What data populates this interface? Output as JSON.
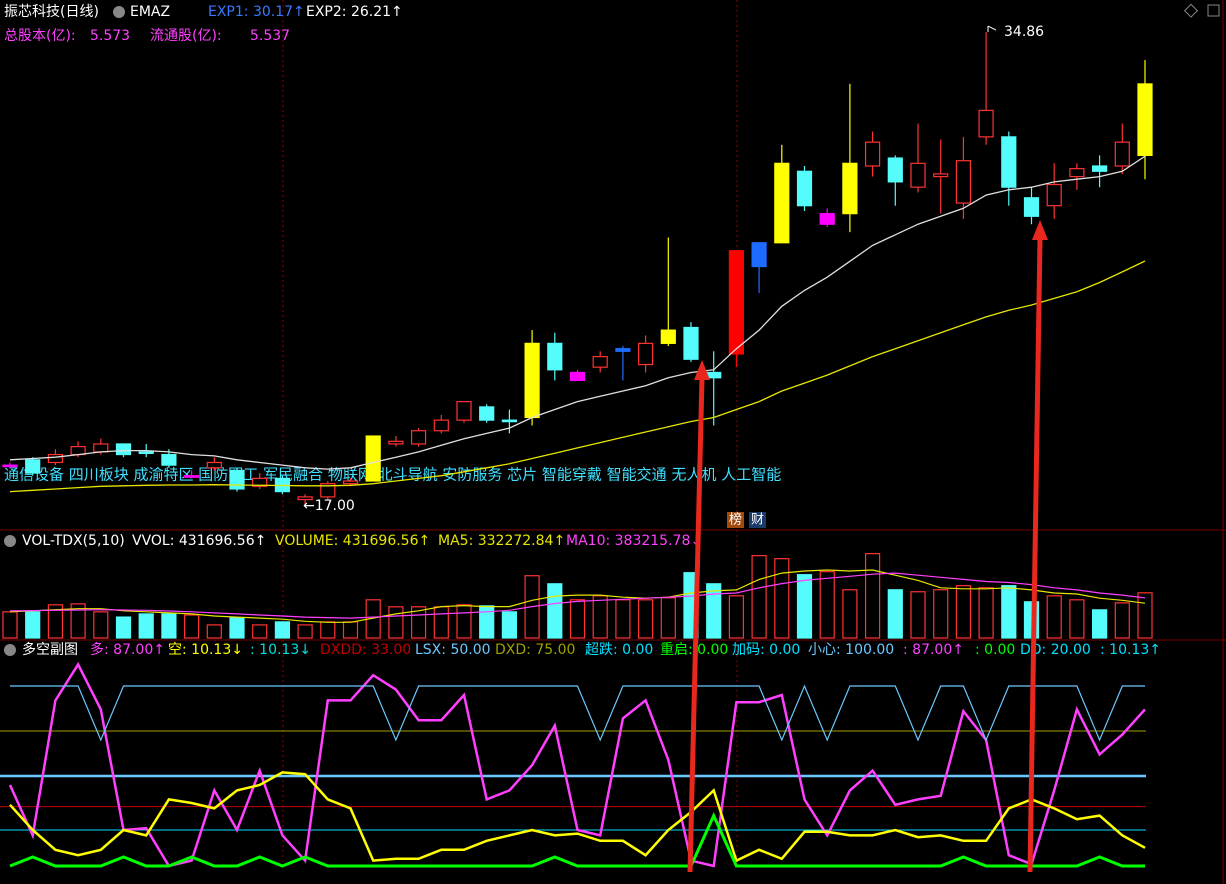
{
  "chart_data": [
    {
      "type": "candlestick",
      "title": "振芯科技(日线)",
      "indicator": "EMAZ",
      "info": [
        {
          "label": "总股本(亿):",
          "value": 5.573
        },
        {
          "label": "流通股(亿):",
          "value": 5.537
        }
      ],
      "open": [
        18.5,
        18.7,
        18.6,
        18.9,
        19.0,
        19.3,
        19.0,
        18.9,
        18.1,
        18.4,
        18.3,
        17.7,
        18.0,
        17.3,
        17.3,
        17.8,
        17.9,
        19.3,
        19.3,
        19.8,
        20.2,
        20.7,
        20.2,
        20.3,
        23.1,
        22.0,
        22.2,
        22.8,
        22.3,
        23.1,
        23.7,
        22.0,
        22.7,
        26.0,
        26.9,
        29.6,
        28.0,
        28.0,
        29.8,
        30.1,
        29.0,
        29.4,
        28.4,
        30.9,
        30.9,
        28.6,
        28.3,
        29.4,
        29.8,
        29.8,
        30.2
      ],
      "close": [
        18.5,
        18.2,
        18.9,
        19.2,
        19.3,
        18.9,
        19.0,
        18.5,
        18.1,
        18.6,
        17.6,
        18.0,
        17.5,
        17.2,
        17.8,
        17.9,
        19.6,
        19.4,
        19.8,
        20.2,
        20.9,
        20.2,
        20.2,
        23.1,
        22.1,
        21.7,
        22.6,
        22.9,
        23.1,
        23.6,
        22.5,
        21.8,
        26.6,
        26.9,
        29.9,
        28.3,
        27.6,
        29.9,
        30.7,
        29.2,
        29.9,
        29.5,
        30.0,
        31.9,
        29.0,
        27.9,
        29.1,
        29.7,
        29.6,
        30.7,
        32.9
      ],
      "high": [
        18.6,
        18.8,
        19.1,
        19.4,
        19.5,
        19.3,
        19.3,
        19.1,
        18.3,
        18.8,
        18.4,
        18.2,
        18.1,
        17.4,
        17.9,
        18.0,
        19.6,
        19.6,
        19.9,
        20.4,
        20.9,
        20.8,
        20.6,
        23.6,
        23.5,
        22.1,
        22.8,
        23.0,
        23.4,
        27.1,
        23.9,
        22.8,
        26.6,
        26.9,
        30.6,
        29.8,
        28.2,
        32.9,
        31.1,
        30.2,
        31.4,
        30.8,
        30.9,
        34.86,
        31.1,
        29.0,
        29.9,
        29.9,
        30.2,
        31.4,
        33.8
      ],
      "low": [
        18.4,
        18.1,
        18.5,
        18.8,
        18.9,
        18.8,
        18.8,
        18.4,
        18.0,
        18.3,
        17.5,
        17.6,
        17.4,
        17.0,
        17.2,
        17.7,
        17.9,
        19.2,
        19.2,
        19.7,
        20.1,
        20.1,
        19.7,
        20.0,
        21.7,
        21.7,
        22.0,
        21.7,
        22.0,
        23.0,
        22.4,
        20.0,
        22.2,
        25.0,
        26.9,
        28.1,
        27.5,
        27.3,
        29.4,
        28.3,
        28.8,
        28.0,
        27.8,
        30.6,
        28.3,
        27.6,
        27.8,
        28.9,
        29.0,
        29.5,
        29.3
      ],
      "colors": [
        "#ff00ff",
        "#54fcfc",
        "#ff3232",
        "#ff3232",
        "#ff3232",
        "#54fcfc",
        "#54fcfc",
        "#54fcfc",
        "#ff00ff",
        "#ff3232",
        "#54fcfc",
        "#ff3232",
        "#54fcfc",
        "#ff3232",
        "#ff3232",
        "#ff3232",
        "#ffff00",
        "#ff3232",
        "#ff3232",
        "#ff3232",
        "#ff3232",
        "#54fcfc",
        "#54fcfc",
        "#ffff00",
        "#54fcfc",
        "#ff00ff",
        "#ff3232",
        "#1e6cff",
        "#ff3232",
        "#ffff00",
        "#54fcfc",
        "#54fcfc",
        "#ff0000",
        "#1e6cff",
        "#ffff00",
        "#54fcfc",
        "#ff00ff",
        "#ffff00",
        "#ff3232",
        "#54fcfc",
        "#ff3232",
        "#ff3232",
        "#ff3232",
        "#ff3232",
        "#54fcfc",
        "#54fcfc",
        "#ff3232",
        "#ff3232",
        "#54fcfc",
        "#ff3232",
        "#ffff00"
      ],
      "series": [
        {
          "name": "EXP1: 30.17↑",
          "color": "#e0e0e0",
          "label_color": "#3c78ff",
          "values": [
            18.7,
            18.75,
            18.8,
            18.9,
            19.0,
            19.05,
            19.05,
            19.0,
            18.9,
            18.85,
            18.7,
            18.6,
            18.5,
            18.4,
            18.35,
            18.4,
            18.6,
            18.8,
            19.0,
            19.25,
            19.5,
            19.7,
            19.9,
            20.3,
            20.6,
            20.9,
            21.1,
            21.3,
            21.5,
            21.8,
            22.0,
            22.1,
            22.9,
            23.6,
            24.5,
            25.1,
            25.6,
            26.2,
            26.8,
            27.2,
            27.6,
            27.9,
            28.2,
            28.7,
            28.9,
            29.0,
            29.2,
            29.3,
            29.4,
            29.6,
            30.17
          ]
        },
        {
          "name": "EXP2: 26.21↑",
          "color": "#e6e600",
          "label_color": "#ffffff",
          "values": [
            17.5,
            17.55,
            17.6,
            17.65,
            17.7,
            17.72,
            17.74,
            17.75,
            17.75,
            17.76,
            17.75,
            17.74,
            17.73,
            17.72,
            17.72,
            17.74,
            17.8,
            17.9,
            18.0,
            18.1,
            18.25,
            18.4,
            18.55,
            18.75,
            18.95,
            19.15,
            19.35,
            19.55,
            19.75,
            19.95,
            20.15,
            20.3,
            20.6,
            20.9,
            21.3,
            21.6,
            21.9,
            22.25,
            22.6,
            22.9,
            23.2,
            23.5,
            23.8,
            24.1,
            24.35,
            24.55,
            24.8,
            25.05,
            25.4,
            25.8,
            26.21
          ]
        }
      ],
      "annotations": [
        {
          "value": 34.86,
          "label": "34.86"
        },
        {
          "value": 17.0,
          "label": "←17.00"
        }
      ],
      "tags": "通信设备 四川板块 成渝特区 国防军工 军民融合 物联网 北斗导航 安防服务 芯片 智能穿戴 智能交通 无人机 人工智能",
      "badges": [
        "榜",
        "财"
      ],
      "ylim": [
        16.05,
        36.07
      ]
    },
    {
      "type": "bar",
      "title": "VOL-TDX(5,10)",
      "legend": [
        {
          "label": "VVOL: 431696.56↑",
          "color": "#ffffff"
        },
        {
          "label": "VOLUME: 431696.56↑",
          "color": "#e6e600"
        }
      ],
      "values": [
        250000,
        250000,
        317000,
        326000,
        250000,
        200000,
        230000,
        230000,
        220000,
        125000,
        192000,
        125000,
        154000,
        125000,
        154000,
        154000,
        365000,
        298000,
        298000,
        298000,
        317000,
        307000,
        250000,
        595000,
        518000,
        365000,
        403000,
        365000,
        365000,
        384000,
        624000,
        518000,
        403000,
        787000,
        758000,
        605000,
        634000,
        461000,
        806000,
        461000,
        442000,
        461000,
        500000,
        480000,
        500000,
        346000,
        403000,
        365000,
        269000,
        336000,
        431696.56
      ],
      "series": [
        {
          "name": "MA5: 332272.84↑",
          "color": "#e6e600",
          "values": [
            250000,
            260000,
            270000,
            280000,
            280000,
            260000,
            250000,
            240000,
            230000,
            210000,
            200000,
            190000,
            180000,
            160000,
            150000,
            150000,
            190000,
            230000,
            260000,
            300000,
            310000,
            300000,
            300000,
            360000,
            400000,
            410000,
            410000,
            390000,
            380000,
            390000,
            430000,
            450000,
            460000,
            560000,
            620000,
            640000,
            650000,
            640000,
            650000,
            600000,
            550000,
            480000,
            470000,
            470000,
            480000,
            460000,
            430000,
            420000,
            380000,
            360000,
            332272.84
          ]
        },
        {
          "name": "MA10: 383215.78↓",
          "color": "#ff40ff",
          "values": [
            260000,
            262000,
            265000,
            268000,
            270000,
            268000,
            265000,
            258000,
            250000,
            240000,
            230000,
            220000,
            210000,
            200000,
            195000,
            190000,
            200000,
            210000,
            220000,
            230000,
            240000,
            250000,
            265000,
            300000,
            330000,
            350000,
            360000,
            370000,
            380000,
            390000,
            400000,
            420000,
            430000,
            480000,
            520000,
            550000,
            570000,
            590000,
            610000,
            620000,
            600000,
            580000,
            560000,
            540000,
            530000,
            510000,
            480000,
            460000,
            430000,
            410000,
            383215.78
          ]
        }
      ],
      "ylim": [
        0,
        860000
      ]
    },
    {
      "type": "line",
      "title": "多空副图",
      "series": [
        {
          "name": "多: 87.00↑",
          "color": "#ff40ff",
          "values": [
            45,
            17,
            92,
            112,
            87,
            20,
            21,
            0,
            3,
            42,
            20,
            53,
            17,
            3,
            92,
            92,
            106,
            98,
            81,
            81,
            95,
            37,
            42,
            56,
            78,
            20,
            17,
            82,
            92,
            59,
            3,
            0,
            91,
            91,
            95,
            37,
            17,
            42,
            53,
            34,
            37,
            39,
            86,
            70,
            6,
            1,
            42,
            87,
            62,
            73,
            87
          ]
        },
        {
          "name": "空: 10.13↓",
          "color": "#ffff00",
          "values": [
            34,
            20,
            9,
            6,
            9,
            20,
            17,
            37,
            35,
            32,
            42,
            45,
            52,
            51,
            37,
            32,
            3,
            4,
            4,
            9,
            9,
            14,
            17,
            20,
            17,
            18,
            14,
            14,
            6,
            20,
            30,
            42,
            3,
            9,
            4,
            19,
            19,
            17,
            17,
            20,
            16,
            17,
            14,
            14,
            32,
            37,
            32,
            26,
            28,
            17,
            10.13
          ]
        },
        {
          "name": ": 10.13↓",
          "color": "#00e0e0"
        },
        {
          "name": "DXDD: 33.00",
          "color": "#c00000",
          "value": 33
        },
        {
          "name": "LSX: 50.00",
          "color": "#6cc8ff",
          "value": 50
        },
        {
          "name": "DXD: 75.00",
          "color": "#a0a000",
          "value": 75
        },
        {
          "name": "超跌: 0.00",
          "color": "#00e0ff"
        },
        {
          "name": "重启: 0.00",
          "color": "#00ff00",
          "values": [
            0,
            5,
            0,
            0,
            0,
            5,
            0,
            0,
            5,
            0,
            0,
            5,
            0,
            5,
            0,
            0,
            0,
            0,
            0,
            0,
            0,
            0,
            0,
            0,
            5,
            0,
            0,
            0,
            0,
            0,
            0,
            28,
            0,
            0,
            0,
            0,
            0,
            0,
            0,
            0,
            0,
            0,
            5,
            0,
            0,
            0,
            0,
            0,
            5,
            0,
            0
          ]
        },
        {
          "name": "加码: 0.00",
          "color": "#00e0ff"
        },
        {
          "name": "小心: 100.00",
          "color": "#6cc8ff",
          "values": [
            100,
            100,
            100,
            100,
            70,
            100,
            100,
            100,
            100,
            100,
            100,
            100,
            100,
            100,
            100,
            100,
            100,
            70,
            100,
            100,
            100,
            100,
            100,
            100,
            100,
            100,
            70,
            100,
            100,
            100,
            100,
            100,
            100,
            100,
            70,
            100,
            70,
            100,
            100,
            100,
            70,
            100,
            100,
            70,
            100,
            100,
            100,
            100,
            70,
            100,
            100
          ]
        },
        {
          "name": ": 87.00↑",
          "color": "#ff40ff"
        },
        {
          "name": ": 0.00",
          "color": "#00ff00"
        },
        {
          "name": "DD: 20.00",
          "color": "#00e0ff",
          "value": 20
        },
        {
          "name": ": 10.13↑",
          "color": "#00e0ff"
        }
      ],
      "ylim": [
        -2.2,
        120
      ]
    }
  ]
}
